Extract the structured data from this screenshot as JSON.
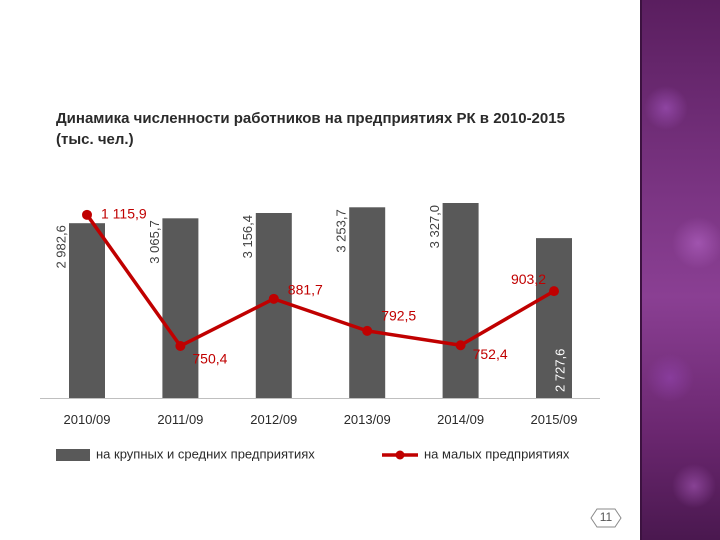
{
  "chart_data": {
    "type": "bar",
    "title": "Динамика численности работников на предприятиях РК в 2010-2015 (тыс. чел.)",
    "categories": [
      "2010/09",
      "2011/09",
      "2012/09",
      "2013/09",
      "2014/09",
      "2015/09"
    ],
    "series": [
      {
        "name": "на крупных и средних предприятиях",
        "chart_type": "bar",
        "values": [
          2982.6,
          3065.7,
          3156.4,
          3253.7,
          3327.0,
          2727.6
        ],
        "labels": [
          "2 982,6",
          "3 065,7",
          "3 156,4",
          "3 253,7",
          "3 327,0",
          "2 727,6"
        ],
        "color": "#595959"
      },
      {
        "name": "на малых предприятиях",
        "chart_type": "line",
        "values": [
          1115.9,
          750.4,
          881.7,
          792.5,
          752.4,
          903.2
        ],
        "labels": [
          "1 115,9",
          "750,4",
          "881,7",
          "792,5",
          "752,4",
          "903,2"
        ],
        "color": "#c00000"
      }
    ],
    "legend": "bottom",
    "grid": false
  },
  "page": {
    "number": "11"
  }
}
